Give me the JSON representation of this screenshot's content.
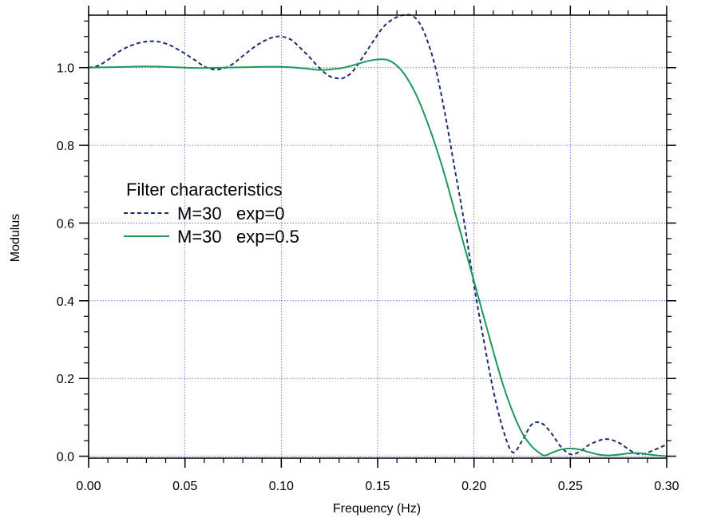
{
  "chart_data": {
    "type": "line",
    "xlabel": "Frequency (Hz)",
    "ylabel": "Modulus",
    "xlim": [
      0.0,
      0.3
    ],
    "ylim": [
      -0.005,
      1.135
    ],
    "x_ticks": [
      0.0,
      0.05,
      0.1,
      0.15,
      0.2,
      0.25,
      0.3
    ],
    "x_tick_labels": [
      "0.00",
      "0.05",
      "0.10",
      "0.15",
      "0.20",
      "0.25",
      "0.30"
    ],
    "y_ticks": [
      0.0,
      0.2,
      0.4,
      0.6,
      0.8,
      1.0
    ],
    "y_tick_labels": [
      "0.0",
      "0.2",
      "0.4",
      "0.6",
      "0.8",
      "1.0"
    ],
    "x_minor_step": 0.01,
    "y_minor_step": 0.04,
    "grid": true,
    "legend": {
      "title": "Filter characteristics",
      "position": "center-left"
    },
    "series": [
      {
        "name": "M=30   exp=0",
        "color": "#1a2e6e",
        "style": "dashed",
        "x": [
          0.0,
          0.005,
          0.01,
          0.017,
          0.025,
          0.033,
          0.04,
          0.047,
          0.055,
          0.06,
          0.065,
          0.07,
          0.075,
          0.08,
          0.088,
          0.095,
          0.1,
          0.105,
          0.11,
          0.115,
          0.12,
          0.125,
          0.13,
          0.133,
          0.137,
          0.142,
          0.148,
          0.153,
          0.158,
          0.163,
          0.167,
          0.171,
          0.175,
          0.18,
          0.185,
          0.19,
          0.195,
          0.2,
          0.205,
          0.21,
          0.215,
          0.22,
          0.225,
          0.23,
          0.235,
          0.24,
          0.245,
          0.25,
          0.255,
          0.26,
          0.268,
          0.275,
          0.282,
          0.287,
          0.293,
          0.3
        ],
        "y": [
          1.0,
          1.005,
          1.02,
          1.045,
          1.062,
          1.068,
          1.062,
          1.045,
          1.02,
          1.003,
          0.995,
          0.998,
          1.01,
          1.03,
          1.06,
          1.077,
          1.08,
          1.072,
          1.05,
          1.025,
          0.998,
          0.978,
          0.972,
          0.975,
          0.99,
          1.025,
          1.07,
          1.105,
          1.125,
          1.135,
          1.135,
          1.12,
          1.08,
          1.0,
          0.88,
          0.74,
          0.6,
          0.44,
          0.3,
          0.17,
          0.07,
          0.01,
          0.04,
          0.082,
          0.085,
          0.06,
          0.025,
          0.005,
          0.012,
          0.03,
          0.044,
          0.035,
          0.012,
          0.005,
          0.015,
          0.03
        ]
      },
      {
        "name": "M=30   exp=0.5",
        "color": "#1a9a5a",
        "style": "solid",
        "x": [
          0.0,
          0.01,
          0.02,
          0.03,
          0.04,
          0.05,
          0.06,
          0.07,
          0.08,
          0.09,
          0.1,
          0.11,
          0.12,
          0.13,
          0.135,
          0.14,
          0.145,
          0.15,
          0.155,
          0.16,
          0.165,
          0.17,
          0.175,
          0.18,
          0.185,
          0.19,
          0.195,
          0.2,
          0.205,
          0.21,
          0.215,
          0.22,
          0.225,
          0.23,
          0.235,
          0.237,
          0.24,
          0.245,
          0.25,
          0.255,
          0.26,
          0.265,
          0.27,
          0.275,
          0.28,
          0.285,
          0.29,
          0.295,
          0.3
        ],
        "y": [
          1.0,
          1.001,
          1.002,
          1.003,
          1.002,
          1.0,
          0.999,
          1.0,
          1.001,
          1.002,
          1.002,
          0.999,
          0.994,
          0.998,
          1.003,
          1.01,
          1.017,
          1.021,
          1.02,
          1.005,
          0.975,
          0.93,
          0.87,
          0.8,
          0.72,
          0.63,
          0.54,
          0.45,
          0.36,
          0.27,
          0.185,
          0.115,
          0.06,
          0.025,
          0.005,
          0.002,
          0.008,
          0.017,
          0.02,
          0.017,
          0.01,
          0.004,
          0.002,
          0.004,
          0.007,
          0.008,
          0.005,
          0.002,
          0.0
        ]
      }
    ]
  }
}
